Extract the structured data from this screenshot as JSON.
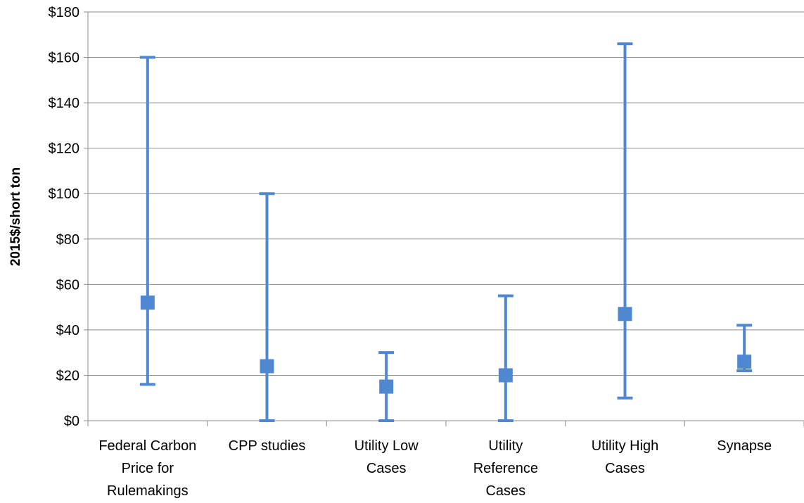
{
  "chart_data": {
    "type": "range",
    "ylabel": "2015$/short ton",
    "ylim": [
      0,
      180
    ],
    "y_tick_step": 20,
    "y_tick_labels": [
      "$0",
      "$20",
      "$40",
      "$60",
      "$80",
      "$100",
      "$120",
      "$140",
      "$160",
      "$180"
    ],
    "grid": true,
    "legend": "none",
    "color": "#4f88d0",
    "categories": [
      [
        "Federal Carbon",
        "Price for",
        "Rulemakings"
      ],
      [
        "CPP studies"
      ],
      [
        "Utility Low",
        "Cases"
      ],
      [
        "Utility",
        "Reference",
        "Cases"
      ],
      [
        "Utility High",
        "Cases"
      ],
      [
        "Synapse"
      ]
    ],
    "points": [
      {
        "low": 16,
        "high": 160,
        "mid": 52
      },
      {
        "low": 0,
        "high": 100,
        "mid": 24
      },
      {
        "low": 0,
        "high": 30,
        "mid": 15
      },
      {
        "low": 0,
        "high": 55,
        "mid": 20
      },
      {
        "low": 10,
        "high": 166,
        "mid": 47
      },
      {
        "low": 22,
        "high": 42,
        "mid": 26
      }
    ]
  }
}
